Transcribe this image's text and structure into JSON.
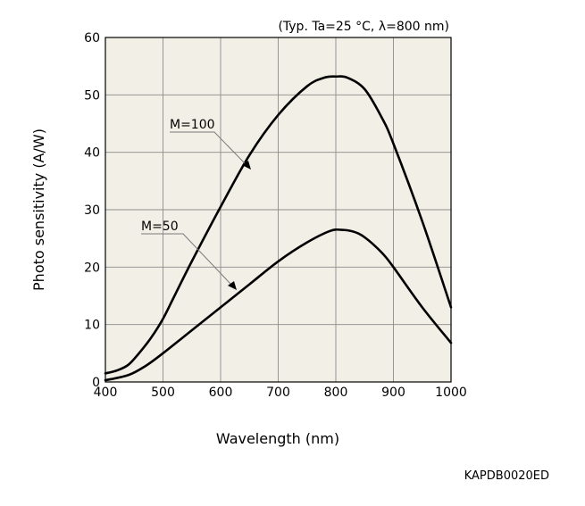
{
  "chart_data": {
    "type": "line",
    "condition": "(Typ. Ta=25 °C, λ=800 nm)",
    "xlabel": "Wavelength (nm)",
    "ylabel": "Photo sensitivity (A/W)",
    "xlim": [
      400,
      1000
    ],
    "ylim": [
      0,
      60
    ],
    "xticks": [
      400,
      500,
      600,
      700,
      800,
      900,
      1000
    ],
    "yticks": [
      0,
      10,
      20,
      30,
      40,
      50,
      60
    ],
    "grid": true,
    "series": [
      {
        "name": "M=100",
        "x": [
          400,
          420,
          440,
          460,
          480,
          500,
          520,
          550,
          600,
          650,
          700,
          750,
          780,
          800,
          820,
          850,
          880,
          900,
          950,
          1000
        ],
        "y": [
          1.5,
          2.0,
          3.0,
          5.2,
          7.8,
          11.0,
          15.0,
          21.0,
          30.5,
          39.5,
          46.5,
          51.5,
          53.0,
          53.2,
          53.0,
          51.0,
          46.0,
          41.5,
          28.0,
          13.0
        ]
      },
      {
        "name": "M=50",
        "x": [
          400,
          440,
          470,
          500,
          550,
          600,
          650,
          700,
          750,
          790,
          810,
          830,
          850,
          880,
          900,
          950,
          1000
        ],
        "y": [
          0.3,
          1.2,
          2.8,
          5.0,
          9.0,
          13.0,
          17.0,
          21.0,
          24.3,
          26.3,
          26.5,
          26.2,
          25.2,
          22.5,
          20.0,
          13.0,
          6.8
        ]
      }
    ]
  },
  "figure_code": "KAPDB0020ED"
}
